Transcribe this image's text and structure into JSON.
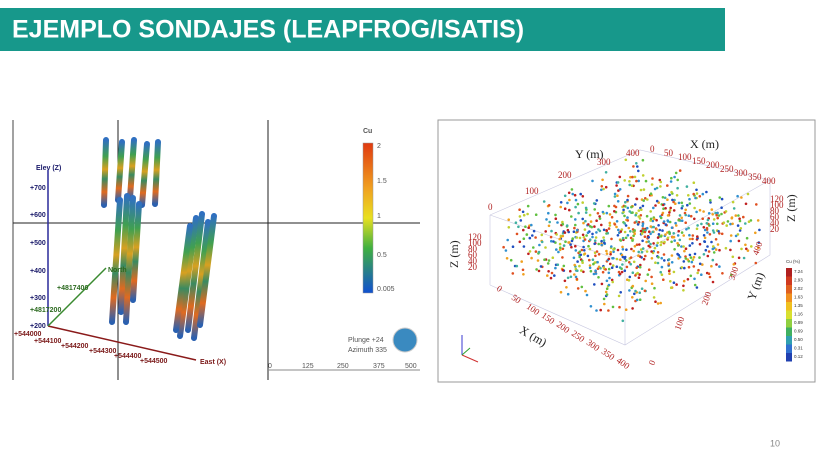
{
  "header": {
    "title": "EJEMPLO SONDAJES (LEAPFROG/ISATIS)"
  },
  "page_number": "10",
  "left_view": {
    "elev_axis": {
      "label": "Elev (Z)",
      "ticks": [
        "+700",
        "+600",
        "+500",
        "+400",
        "+300",
        "+200"
      ]
    },
    "north_axis": {
      "label": "North",
      "ticks": [
        "+4817400",
        "+4817200"
      ]
    },
    "east_axis": {
      "label": "East (X)",
      "ticks": [
        "+544000",
        "+544100",
        "+544200",
        "+544300",
        "+544400",
        "+544500"
      ]
    },
    "legend": {
      "title": "Cu",
      "ticks": [
        "2",
        "1.5",
        "1",
        "0.5",
        "0.005"
      ]
    },
    "orientation": [
      "Plunge +24",
      "Azimuth 335"
    ],
    "scale": [
      "0",
      "125",
      "250",
      "375",
      "500"
    ]
  },
  "right_view": {
    "y_label": "Y (m)",
    "x_label": "X (m)",
    "z_label": "Z (m)",
    "x_top_ticks": [
      "0",
      "50",
      "100",
      "150",
      "200",
      "250",
      "300",
      "350",
      "400"
    ],
    "y_top_ticks": [
      "0",
      "100",
      "200",
      "300",
      "400"
    ],
    "z_left_ticks": [
      "120",
      "100",
      "80",
      "60",
      "40",
      "20"
    ],
    "x_bottom_ticks": [
      "0",
      "50",
      "100",
      "150",
      "200",
      "250",
      "300",
      "350",
      "400"
    ],
    "y_right_ticks": [
      "0",
      "100",
      "200",
      "300",
      "400"
    ],
    "z_right_ticks": [
      "120",
      "100",
      "80",
      "60",
      "40",
      "20"
    ],
    "legend": {
      "title": "Cu (%)",
      "ticks": [
        "7.24",
        "2.93",
        "2.02",
        "1.63",
        "1.35",
        "1.16",
        "0.89",
        "0.69",
        "0.50",
        "0.31",
        "0.12"
      ]
    }
  }
}
